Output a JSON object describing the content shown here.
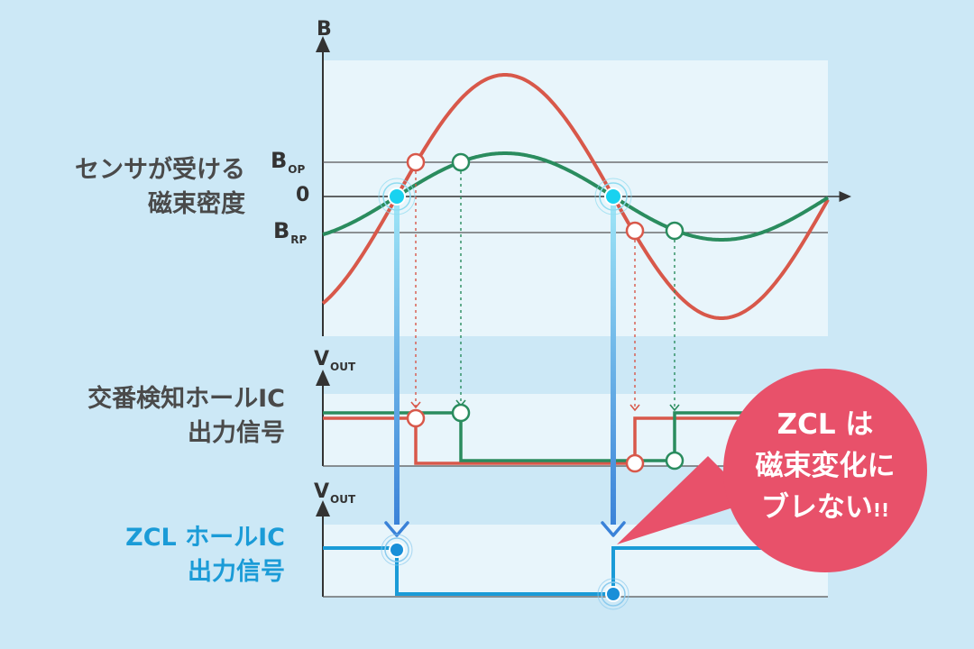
{
  "labels": {
    "flux_line1": "センサが受ける",
    "flux_line2": "磁束密度",
    "alt_line1": "交番検知ホールIC",
    "alt_line2": "出力信号",
    "zcl_line1": "ZCL ホールIC",
    "zcl_line2": "出力信号"
  },
  "axes": {
    "b": "B",
    "b_op": "B",
    "b_op_sub": "OP",
    "zero": "0",
    "b_rp": "B",
    "b_rp_sub": "RP",
    "vout1": "V",
    "vout1_sub": "OUT",
    "vout2": "V",
    "vout2_sub": "OUT"
  },
  "bubble": {
    "line1": "ZCL は",
    "line2": "磁束変化に",
    "line3": "ブレない",
    "exclaim": "!!"
  },
  "colors": {
    "background": "#cce8f6",
    "panel": "#e8f5fb",
    "red": "#d8584a",
    "green": "#2a8c5e",
    "blue": "#1a9bd7",
    "bubble": "#e8516a"
  }
}
